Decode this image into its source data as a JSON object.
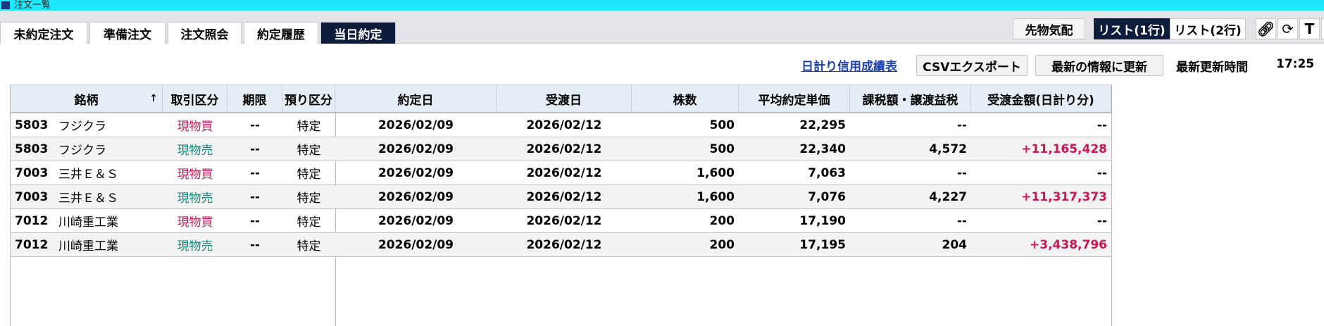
{
  "window": {
    "title": "注文一覧"
  },
  "tabs": [
    {
      "label": "未約定注文"
    },
    {
      "label": "準備注文"
    },
    {
      "label": "注文照会"
    },
    {
      "label": "約定履歴"
    },
    {
      "label": "当日約定",
      "active": true
    }
  ],
  "toolbar": {
    "futures": "先物気配",
    "list1": "リスト(1行)",
    "list2": "リスト(2行)",
    "icons": [
      "link-icon",
      "refresh-icon",
      "text-icon"
    ]
  },
  "actions": {
    "daily_report_link": "日計り信用成績表",
    "csv_export": "CSVエクスポート",
    "refresh": "最新の情報に更新",
    "last_update_label": "最新更新時間",
    "last_update_time": "17:25"
  },
  "colors": {
    "buy": "#cc1655",
    "sell": "#128a7c",
    "positive": "#cc1655",
    "active_tab": "#0f1d3d",
    "titlebar": "#1ee8fc"
  },
  "table": {
    "headers": [
      "銘柄",
      "取引区分",
      "期限",
      "預り区分",
      "約定日",
      "受渡日",
      "株数",
      "平均約定単価",
      "課税額・譲渡益税",
      "受渡金額(日計り分)"
    ],
    "sort_indicator": "↑",
    "rows": [
      [
        "5803",
        "フジクラ",
        "現物買",
        "--",
        "特定",
        "2026/02/09",
        "2026/02/12",
        "500",
        "22,295",
        "--",
        "--"
      ],
      [
        "5803",
        "フジクラ",
        "現物売",
        "--",
        "特定",
        "2026/02/09",
        "2026/02/12",
        "500",
        "22,340",
        "4,572",
        "+11,165,428"
      ],
      [
        "7003",
        "三井Ｅ＆Ｓ",
        "現物買",
        "--",
        "特定",
        "2026/02/09",
        "2026/02/12",
        "1,600",
        "7,063",
        "--",
        "--"
      ],
      [
        "7003",
        "三井Ｅ＆Ｓ",
        "現物売",
        "--",
        "特定",
        "2026/02/09",
        "2026/02/12",
        "1,600",
        "7,076",
        "4,227",
        "+11,317,373"
      ],
      [
        "7012",
        "川崎重工業",
        "現物買",
        "--",
        "特定",
        "2026/02/09",
        "2026/02/12",
        "200",
        "17,190",
        "--",
        "--"
      ],
      [
        "7012",
        "川崎重工業",
        "現物売",
        "--",
        "特定",
        "2026/02/09",
        "2026/02/12",
        "200",
        "17,195",
        "204",
        "+3,438,796"
      ]
    ]
  }
}
